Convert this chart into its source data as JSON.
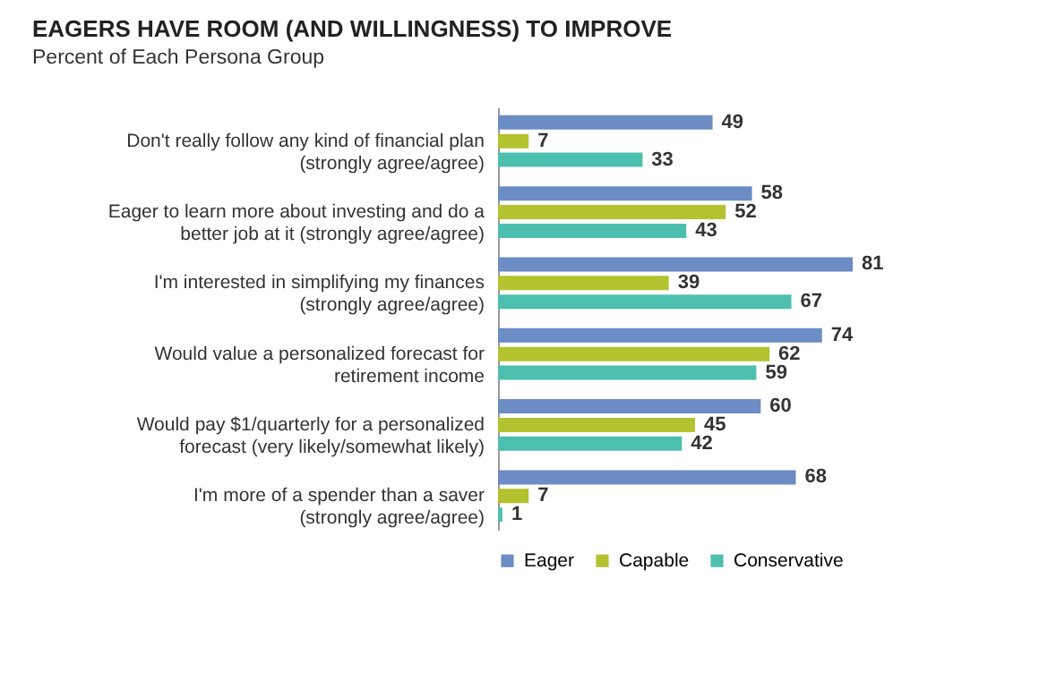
{
  "chart_data": {
    "type": "bar",
    "orientation": "horizontal",
    "title": "EAGERS HAVE ROOM (AND WILLINGNESS) TO IMPROVE",
    "subtitle": "Percent of Each Persona Group",
    "categories": [
      "Don't really follow any kind of financial plan\n(strongly agree/agree)",
      "Eager to learn more about investing and do a\nbetter job at it (strongly agree/agree)",
      "I'm interested in simplifying my finances\n(strongly agree/agree)",
      "Would value a personalized forecast for\nretirement income",
      "Would pay $1/quarterly for a personalized\nforecast (very likely/somewhat likely)",
      "I'm more of a spender than a saver\n(strongly agree/agree)"
    ],
    "series": [
      {
        "name": "Eager",
        "color": "#6b8cc4",
        "values": [
          49,
          58,
          81,
          74,
          60,
          68
        ]
      },
      {
        "name": "Capable",
        "color": "#b3c22f",
        "values": [
          7,
          52,
          39,
          62,
          45,
          7
        ]
      },
      {
        "name": "Conservative",
        "color": "#4dbfae",
        "values": [
          33,
          43,
          67,
          59,
          42,
          1
        ]
      }
    ],
    "data_labels": true,
    "legend": "bottom",
    "grid": false
  }
}
